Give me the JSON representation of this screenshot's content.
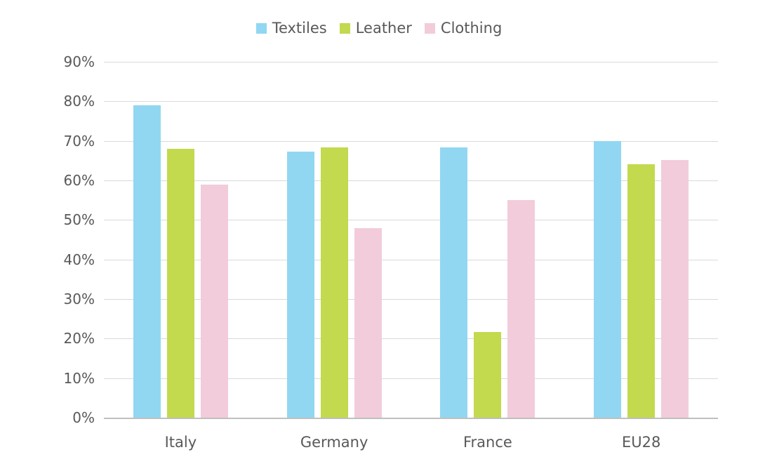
{
  "chart_data": {
    "type": "bar",
    "title": "",
    "xlabel": "",
    "ylabel": "",
    "categories": [
      "Italy",
      "Germany",
      "France",
      "EU28"
    ],
    "series": [
      {
        "name": "Textiles",
        "color": "#91D7F2",
        "values": [
          79,
          67.3,
          68.4,
          70
        ]
      },
      {
        "name": "Leather",
        "color": "#C3D94E",
        "values": [
          68,
          68.4,
          21.7,
          64
        ]
      },
      {
        "name": "Clothing",
        "color": "#F2CCDB",
        "values": [
          59,
          48,
          55,
          65.2
        ]
      }
    ],
    "ylim": [
      0,
      90
    ],
    "ytick_step": 10,
    "ytick_labels": [
      "0%",
      "10%",
      "20%",
      "30%",
      "40%",
      "50%",
      "60%",
      "70%",
      "80%",
      "90%"
    ],
    "grid": "horizontal",
    "legend_position": "top"
  },
  "colors": {
    "background": "#FFFFFF",
    "text": "#595959",
    "gridline": "#D9D9D9",
    "axis_line": "#BFBFBF"
  }
}
